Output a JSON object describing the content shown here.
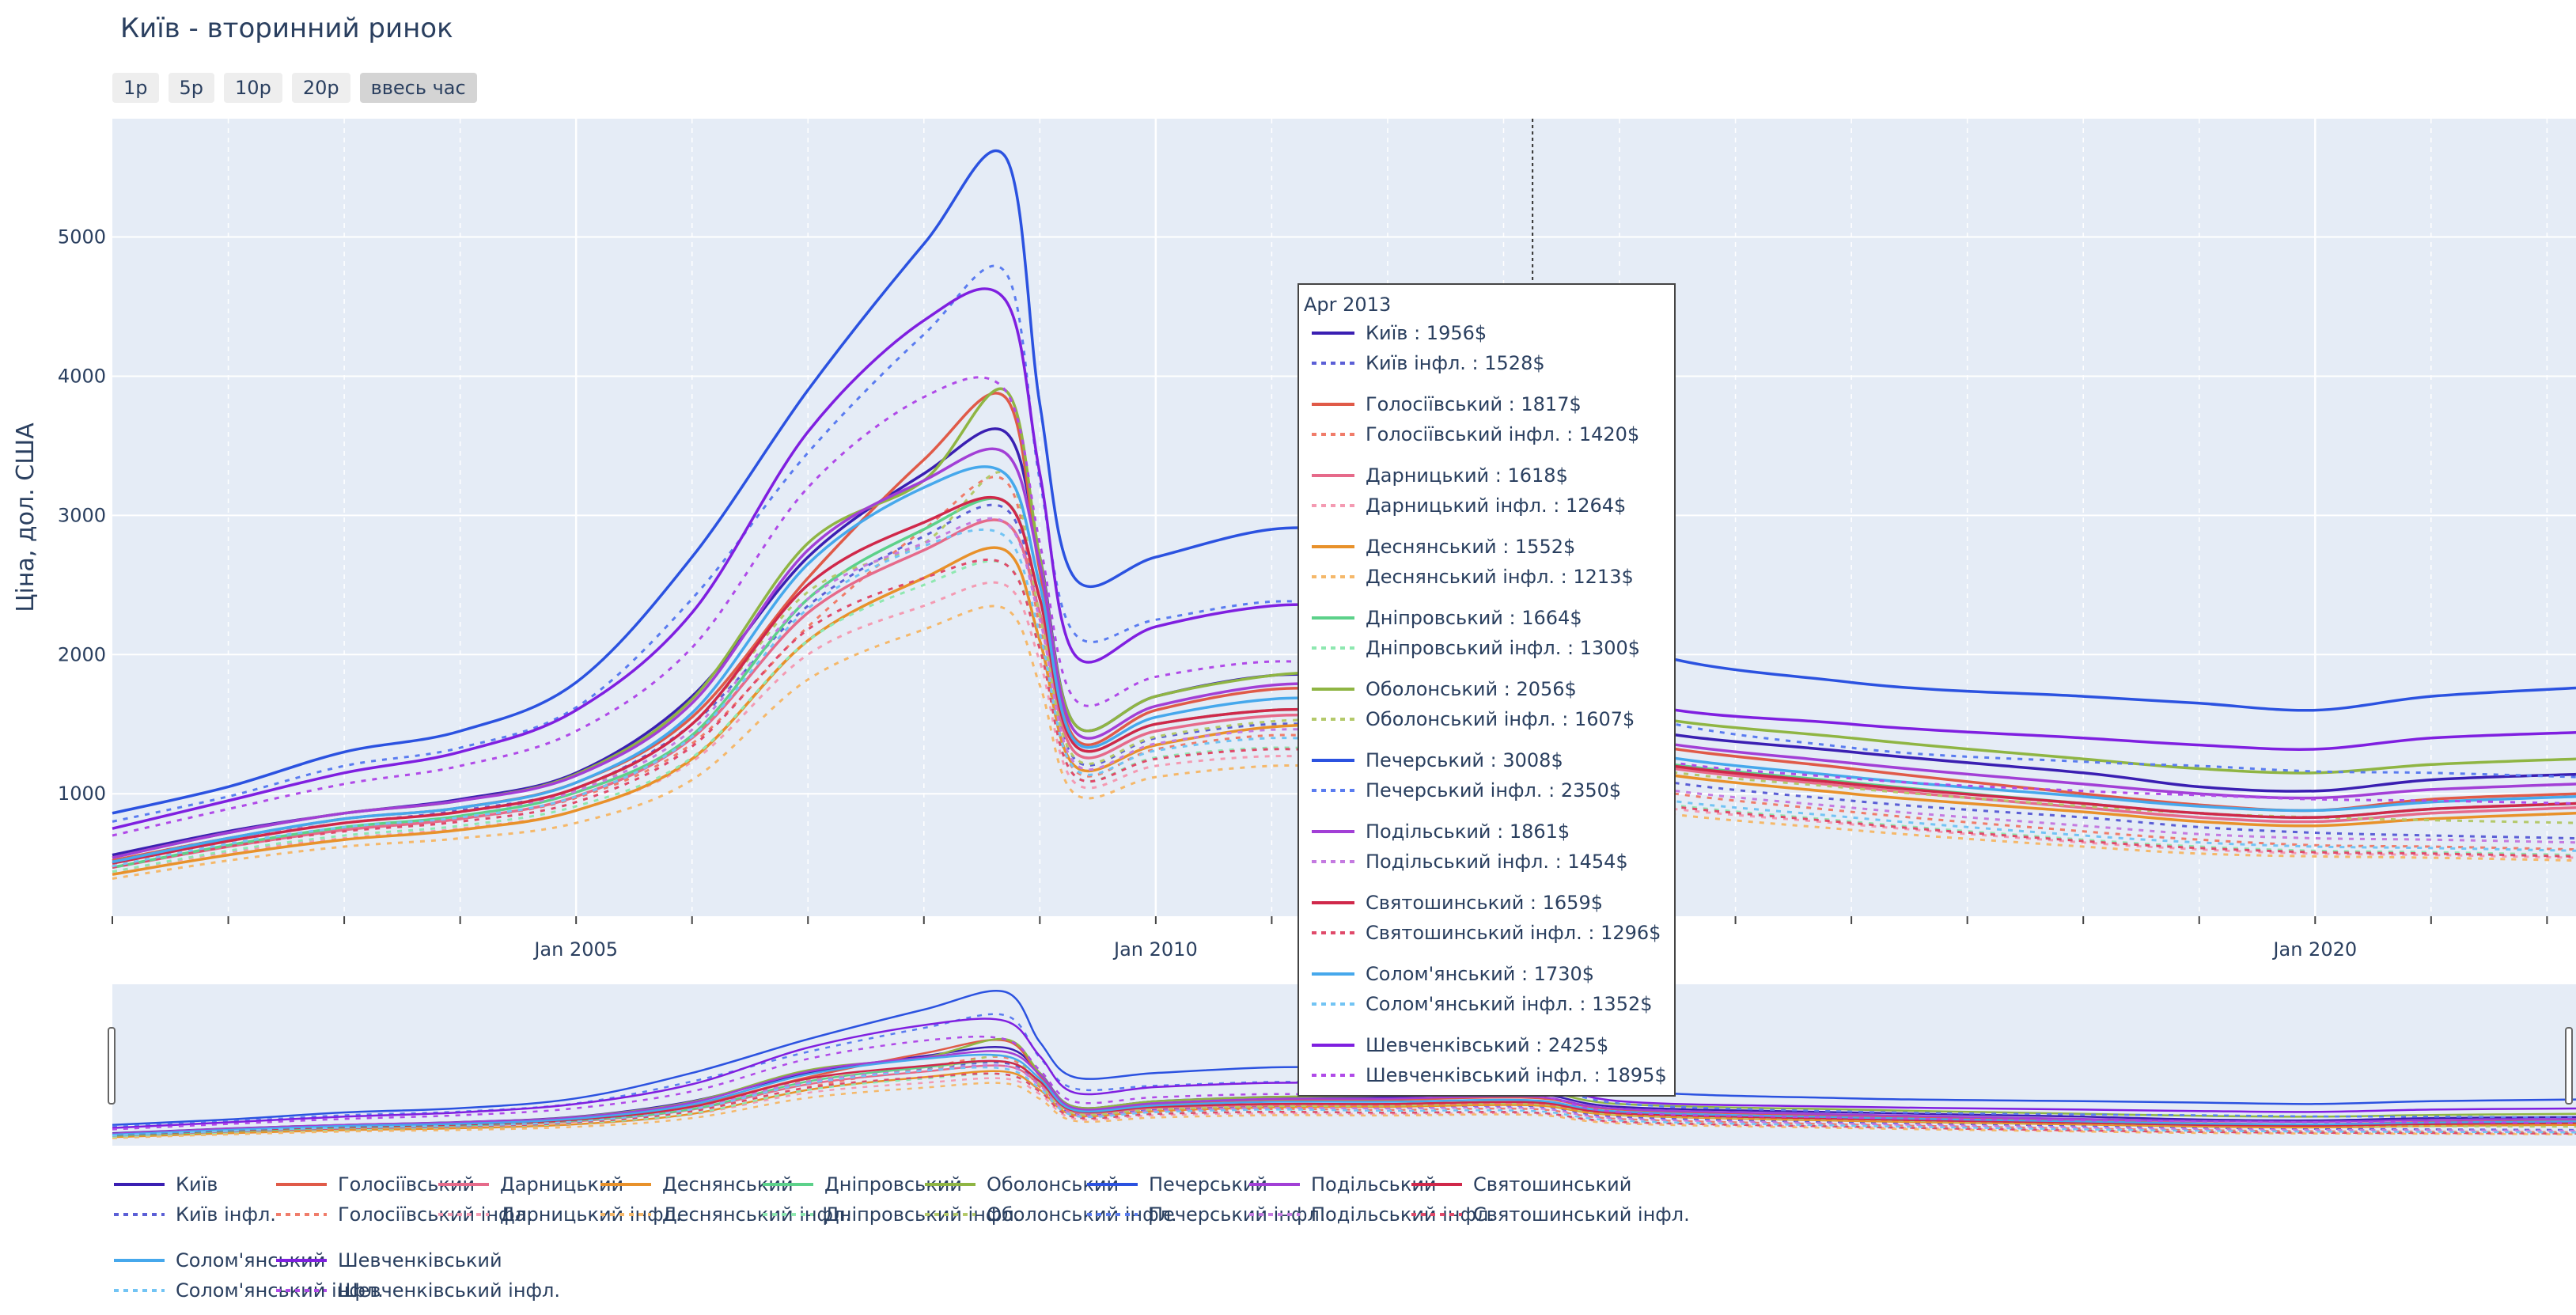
{
  "title": "Київ - вторинний ринок",
  "range_buttons": [
    {
      "label": "1р",
      "active": false
    },
    {
      "label": "5р",
      "active": false
    },
    {
      "label": "10р",
      "active": false
    },
    {
      "label": "20р",
      "active": false
    },
    {
      "label": "ввесь час",
      "active": true
    }
  ],
  "colors": {
    "plot_bg": "#e5ecf6",
    "grid": "#ffffff",
    "text": "#2a3f5f"
  },
  "chart_data": {
    "type": "line",
    "title": "Київ - вторинний ринок",
    "xlabel": "",
    "ylabel": "Ціна, дол. США",
    "x_range": [
      2001.0,
      2022.25
    ],
    "ylim": [
      120,
      5850
    ],
    "x_ticks": [
      {
        "value": 2005.0,
        "label": "Jan 2005"
      },
      {
        "value": 2010.0,
        "label": "Jan 2010"
      },
      {
        "value": 2020.0,
        "label": "Jan 2020"
      }
    ],
    "y_ticks": [
      1000,
      2000,
      3000,
      4000,
      5000
    ],
    "grid": true,
    "legend_position": "bottom",
    "x_keys": [
      2001.0,
      2002.0,
      2003.0,
      2004.0,
      2005.0,
      2006.0,
      2007.0,
      2008.0,
      2008.7,
      2009.0,
      2009.3,
      2010.0,
      2011.0,
      2012.0,
      2013.25,
      2014.0,
      2016.0,
      2018.0,
      2019.0,
      2020.0,
      2021.0,
      2022.25
    ],
    "series": [
      {
        "name": "Київ",
        "color": "#3a1fb2",
        "dash": "solid",
        "values": [
          560,
          730,
          860,
          960,
          1150,
          1700,
          2700,
          3300,
          3600,
          2700,
          1500,
          1700,
          1850,
          1850,
          1956,
          1500,
          1300,
          1150,
          1050,
          1020,
          1100,
          1140
        ]
      },
      {
        "name": "Київ інфл.",
        "color": "#5b5fd6",
        "dash": "dot",
        "values": [
          520,
          680,
          790,
          880,
          1040,
          1500,
          2350,
          2850,
          3050,
          2300,
          1250,
          1400,
          1500,
          1480,
          1528,
          1150,
          950,
          830,
          760,
          720,
          700,
          680
        ]
      },
      {
        "name": "Голосіївський",
        "color": "#e05a48",
        "dash": "solid",
        "values": [
          520,
          680,
          820,
          900,
          1080,
          1550,
          2550,
          3400,
          3850,
          2600,
          1400,
          1600,
          1750,
          1750,
          1817,
          1400,
          1180,
          1000,
          920,
          880,
          960,
          1000
        ]
      },
      {
        "name": "Голосіївський інфл.",
        "color": "#f07c6a",
        "dash": "dot",
        "values": [
          480,
          630,
          750,
          820,
          970,
          1360,
          2200,
          2900,
          3250,
          2200,
          1170,
          1320,
          1420,
          1390,
          1420,
          1070,
          870,
          730,
          670,
          630,
          620,
          600
        ]
      },
      {
        "name": "Дарницький",
        "color": "#e66a8a",
        "dash": "solid",
        "values": [
          470,
          620,
          740,
          820,
          980,
          1400,
          2300,
          2750,
          2950,
          2300,
          1300,
          1450,
          1560,
          1560,
          1618,
          1250,
          1050,
          900,
          830,
          800,
          860,
          900
        ]
      },
      {
        "name": "Дарницький інфл.",
        "color": "#f49ab2",
        "dash": "dot",
        "values": [
          440,
          580,
          680,
          750,
          880,
          1230,
          2000,
          2350,
          2500,
          1950,
          1080,
          1200,
          1270,
          1240,
          1264,
          950,
          780,
          650,
          600,
          570,
          560,
          540
        ]
      },
      {
        "name": "Деснянський",
        "color": "#e8912a",
        "dash": "solid",
        "values": [
          420,
          560,
          670,
          740,
          880,
          1250,
          2100,
          2550,
          2750,
          2100,
          1200,
          1350,
          1480,
          1500,
          1552,
          1200,
          1000,
          870,
          800,
          770,
          820,
          860
        ]
      },
      {
        "name": "Деснянський інфл.",
        "color": "#f5b86a",
        "dash": "dot",
        "values": [
          390,
          520,
          620,
          680,
          790,
          1100,
          1820,
          2180,
          2330,
          1780,
          1000,
          1120,
          1200,
          1190,
          1213,
          910,
          740,
          620,
          570,
          550,
          540,
          520
        ]
      },
      {
        "name": "Дніпровський",
        "color": "#5cd18a",
        "dash": "solid",
        "values": [
          470,
          630,
          760,
          840,
          1010,
          1420,
          2400,
          2900,
          3100,
          2400,
          1350,
          1500,
          1600,
          1600,
          1664,
          1280,
          1080,
          930,
          860,
          830,
          890,
          930
        ]
      },
      {
        "name": "Дніпровський інфл.",
        "color": "#8ee8b0",
        "dash": "dot",
        "values": [
          440,
          590,
          700,
          770,
          910,
          1260,
          2100,
          2500,
          2650,
          2050,
          1130,
          1260,
          1330,
          1300,
          1300,
          980,
          800,
          670,
          620,
          590,
          580,
          560
        ]
      },
      {
        "name": "Оболонський",
        "color": "#8fb543",
        "dash": "solid",
        "values": [
          540,
          720,
          860,
          950,
          1140,
          1680,
          2800,
          3250,
          3900,
          2700,
          1500,
          1700,
          1850,
          1900,
          2056,
          1600,
          1400,
          1250,
          1180,
          1150,
          1210,
          1250
        ]
      },
      {
        "name": "Оболонський інфл.",
        "color": "#b4c96a",
        "dash": "dot",
        "values": [
          500,
          670,
          790,
          870,
          1030,
          1500,
          2450,
          2800,
          3300,
          2280,
          1260,
          1410,
          1520,
          1540,
          1607,
          1220,
          1040,
          910,
          860,
          830,
          810,
          790
        ]
      },
      {
        "name": "Печерський",
        "color": "#2b52e0",
        "dash": "solid",
        "values": [
          860,
          1050,
          1300,
          1450,
          1800,
          2700,
          3900,
          4950,
          5580,
          3800,
          2550,
          2700,
          2900,
          2900,
          3008,
          2100,
          1800,
          1700,
          1650,
          1600,
          1700,
          1760
        ]
      },
      {
        "name": "Печерський інфл.",
        "color": "#5a7cf0",
        "dash": "dot",
        "values": [
          800,
          980,
          1200,
          1330,
          1620,
          2400,
          3450,
          4300,
          4750,
          3250,
          2150,
          2250,
          2380,
          2340,
          2350,
          1620,
          1330,
          1230,
          1200,
          1160,
          1150,
          1120
        ]
      },
      {
        "name": "Подільський",
        "color": "#a23fd6",
        "dash": "solid",
        "values": [
          540,
          720,
          860,
          950,
          1130,
          1650,
          2750,
          3250,
          3450,
          2650,
          1450,
          1630,
          1780,
          1790,
          1861,
          1430,
          1220,
          1070,
          1000,
          970,
          1030,
          1070
        ]
      },
      {
        "name": "Подільський інфл.",
        "color": "#c47ae0",
        "dash": "dot",
        "values": [
          500,
          670,
          790,
          870,
          1020,
          1460,
          2400,
          2800,
          2950,
          2250,
          1220,
          1360,
          1460,
          1440,
          1454,
          1090,
          900,
          770,
          710,
          680,
          670,
          650
        ]
      },
      {
        "name": "Святошинський",
        "color": "#d0284a",
        "dash": "solid",
        "values": [
          500,
          660,
          790,
          870,
          1040,
          1500,
          2500,
          2950,
          3100,
          2400,
          1350,
          1500,
          1600,
          1600,
          1659,
          1270,
          1070,
          930,
          860,
          830,
          890,
          930
        ]
      },
      {
        "name": "Святошинський інфл.",
        "color": "#e04a6a",
        "dash": "dot",
        "values": [
          470,
          620,
          730,
          800,
          940,
          1340,
          2180,
          2550,
          2650,
          2040,
          1130,
          1250,
          1320,
          1290,
          1296,
          970,
          790,
          660,
          610,
          580,
          570,
          550
        ]
      },
      {
        "name": "Солом'янський",
        "color": "#46a8ec",
        "dash": "solid",
        "values": [
          510,
          680,
          820,
          900,
          1080,
          1580,
          2650,
          3200,
          3300,
          2500,
          1380,
          1550,
          1680,
          1680,
          1730,
          1330,
          1120,
          980,
          910,
          880,
          940,
          980
        ]
      },
      {
        "name": "Солом'янський інфл.",
        "color": "#72c4f4",
        "dash": "dot",
        "values": [
          480,
          640,
          760,
          830,
          980,
          1410,
          2330,
          2780,
          2850,
          2150,
          1180,
          1310,
          1400,
          1360,
          1352,
          1010,
          830,
          700,
          650,
          620,
          610,
          590
        ]
      },
      {
        "name": "Шевченківський",
        "color": "#7f1fe0",
        "dash": "solid",
        "values": [
          750,
          950,
          1150,
          1300,
          1600,
          2300,
          3600,
          4400,
          4550,
          3300,
          2000,
          2200,
          2350,
          2350,
          2425,
          1700,
          1500,
          1400,
          1350,
          1320,
          1400,
          1440
        ]
      },
      {
        "name": "Шевченківський інфл.",
        "color": "#b04ae8",
        "dash": "dot",
        "values": [
          700,
          890,
          1070,
          1200,
          1450,
          2050,
          3200,
          3850,
          3900,
          2800,
          1680,
          1840,
          1950,
          1900,
          1895,
          1310,
          1110,
          1020,
          990,
          960,
          950,
          930
        ]
      }
    ]
  },
  "hover": {
    "date": "Apr 2013",
    "items": [
      {
        "label": "Київ : 1956$",
        "color": "#3a1fb2",
        "dash": "solid"
      },
      {
        "label": "Київ інфл. : 1528$",
        "color": "#5b5fd6",
        "dash": "dot"
      },
      {
        "label": "Голосіївський : 1817$",
        "color": "#e05a48",
        "dash": "solid"
      },
      {
        "label": "Голосіївський інфл. : 1420$",
        "color": "#f07c6a",
        "dash": "dot"
      },
      {
        "label": "Дарницький : 1618$",
        "color": "#e66a8a",
        "dash": "solid"
      },
      {
        "label": "Дарницький інфл. : 1264$",
        "color": "#f49ab2",
        "dash": "dot"
      },
      {
        "label": "Деснянський : 1552$",
        "color": "#e8912a",
        "dash": "solid"
      },
      {
        "label": "Деснянський інфл. : 1213$",
        "color": "#f5b86a",
        "dash": "dot"
      },
      {
        "label": "Дніпровський : 1664$",
        "color": "#5cd18a",
        "dash": "solid"
      },
      {
        "label": "Дніпровський інфл. : 1300$",
        "color": "#8ee8b0",
        "dash": "dot"
      },
      {
        "label": "Оболонський : 2056$",
        "color": "#8fb543",
        "dash": "solid"
      },
      {
        "label": "Оболонський інфл. : 1607$",
        "color": "#b4c96a",
        "dash": "dot"
      },
      {
        "label": "Печерський : 3008$",
        "color": "#2b52e0",
        "dash": "solid"
      },
      {
        "label": "Печерський інфл. : 2350$",
        "color": "#5a7cf0",
        "dash": "dot"
      },
      {
        "label": "Подільський : 1861$",
        "color": "#a23fd6",
        "dash": "solid"
      },
      {
        "label": "Подільський інфл. : 1454$",
        "color": "#c47ae0",
        "dash": "dot"
      },
      {
        "label": "Святошинський : 1659$",
        "color": "#d0284a",
        "dash": "solid"
      },
      {
        "label": "Святошинський інфл. : 1296$",
        "color": "#e04a6a",
        "dash": "dot"
      },
      {
        "label": "Солом'янський : 1730$",
        "color": "#46a8ec",
        "dash": "solid"
      },
      {
        "label": "Солом'янський інфл. : 1352$",
        "color": "#72c4f4",
        "dash": "dot"
      },
      {
        "label": "Шевченківський : 2425$",
        "color": "#7f1fe0",
        "dash": "solid"
      },
      {
        "label": "Шевченківський інфл. : 1895$",
        "color": "#b04ae8",
        "dash": "dot"
      }
    ]
  }
}
